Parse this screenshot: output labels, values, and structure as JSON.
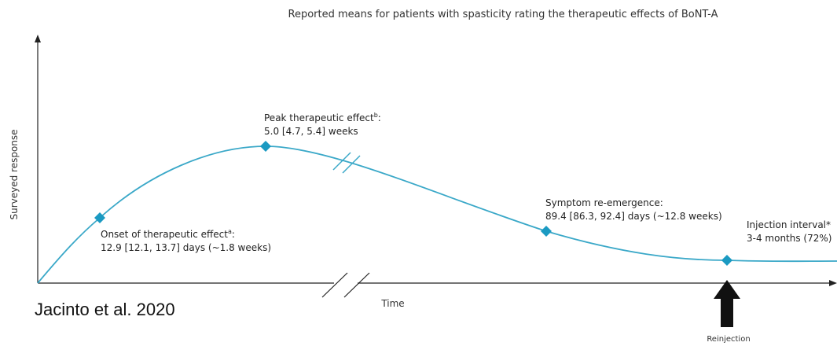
{
  "title": "Reported means for patients with spasticity rating the therapeutic effects of BoNT-A",
  "y_axis_label": "Surveyed response",
  "x_axis_label": "Time",
  "citation": "Jacinto et al. 2020",
  "annotations": [
    {
      "label": "Onset of therapeutic effect",
      "sup": "a",
      "suffix": ":",
      "detail": "12.9 [12.1, 13.7] days (~1.8 weeks)"
    },
    {
      "label": "Peak therapeutic effect",
      "sup": "b",
      "suffix": ":",
      "detail": "5.0 [4.7, 5.4] weeks"
    },
    {
      "label": "Symptom re-emergence:",
      "detail": "89.4 [86.3, 92.4] days (~12.8 weeks)"
    },
    {
      "label": "Injection interval*",
      "detail": "3-4 months (72%)"
    }
  ],
  "arrow_label": "Reinjection"
}
